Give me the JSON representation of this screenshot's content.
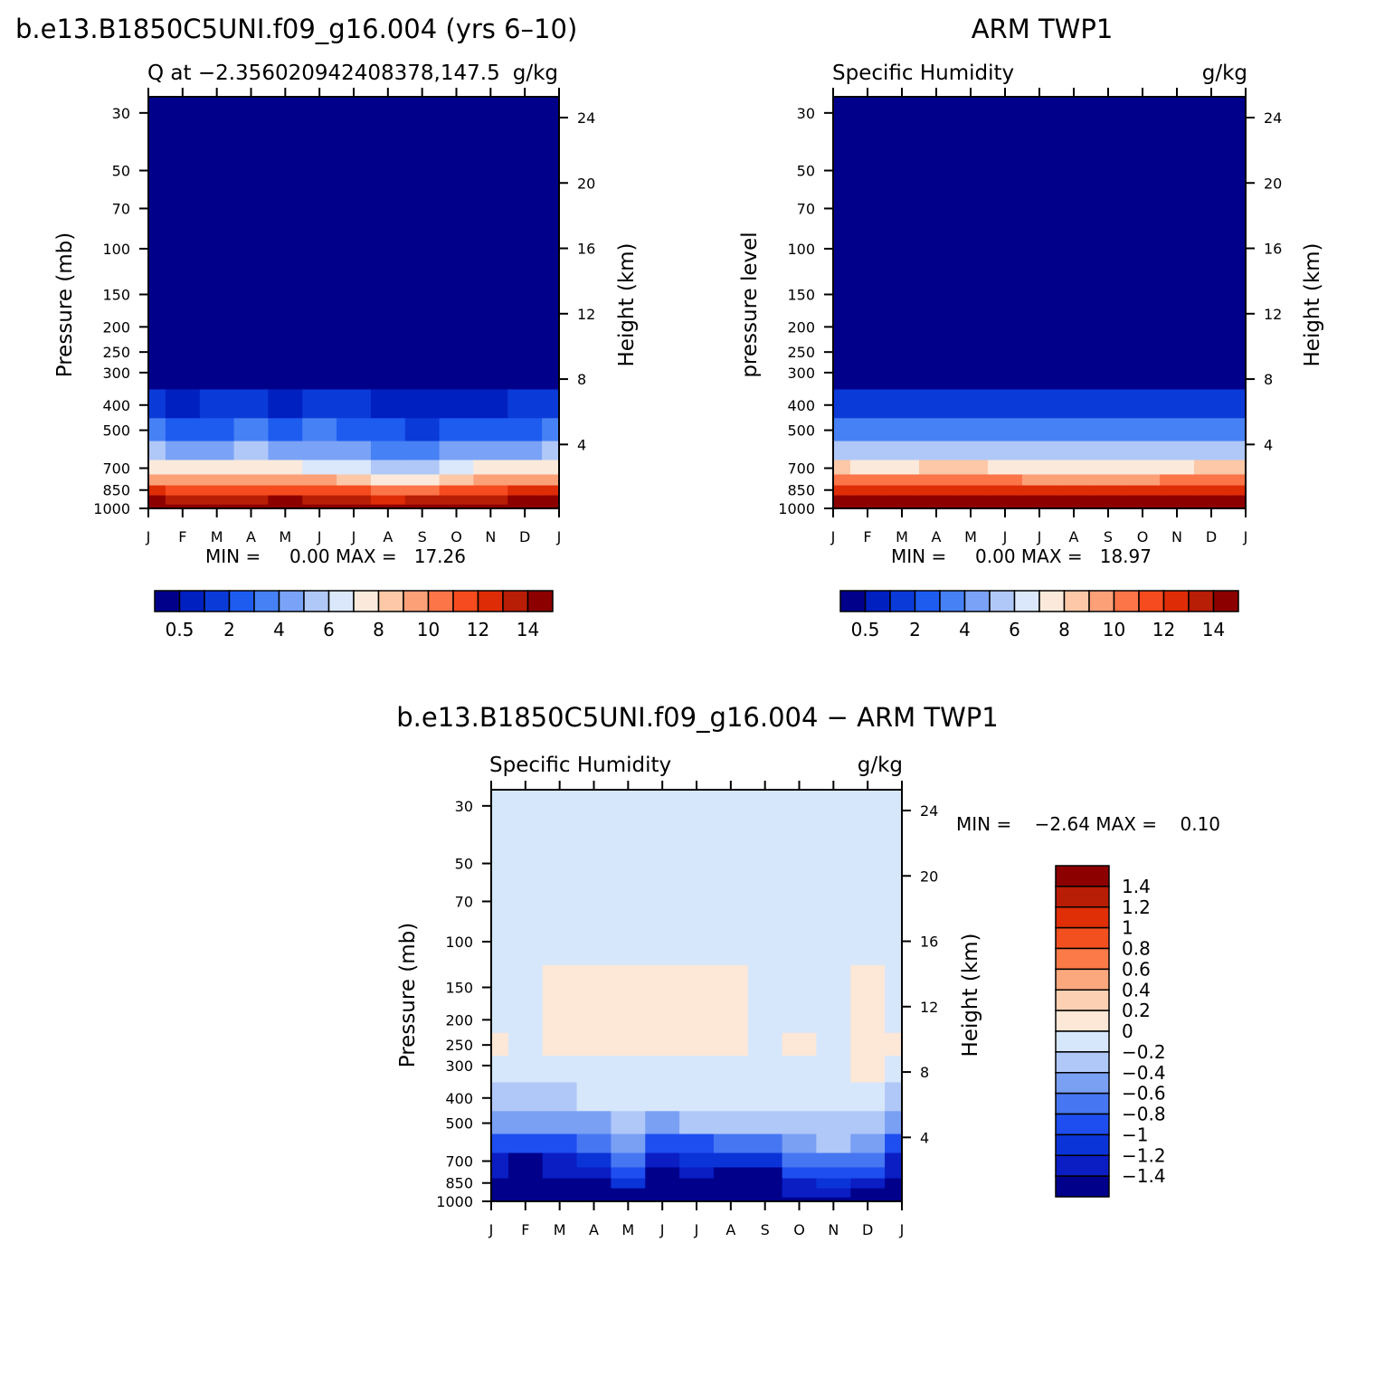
{
  "colors": {
    "model_scale": [
      "#00008b",
      "#0020c0",
      "#0a3ad8",
      "#1e5cf0",
      "#4681f5",
      "#7aa2f6",
      "#b0c8f8",
      "#dbe8fb",
      "#fbeadb",
      "#fcc8a8",
      "#fca078",
      "#fb7548",
      "#f54b1e",
      "#de2c06",
      "#b81d05",
      "#8c0000"
    ],
    "diff_scale": [
      "#00008b",
      "#0a1ec4",
      "#0b34d8",
      "#1e4ef0",
      "#4676f2",
      "#7aa0f4",
      "#b0c8f8",
      "#d6e7fb",
      "#fde7d6",
      "#fcd0b2",
      "#fca87e",
      "#fb7a48",
      "#f3501f",
      "#e02e06",
      "#b81d05",
      "#8c0000"
    ],
    "frame": "#000000"
  },
  "months": [
    "J",
    "F",
    "M",
    "A",
    "M",
    "J",
    "J",
    "A",
    "S",
    "O",
    "N",
    "D",
    "J"
  ],
  "panels": [
    {
      "id": "model",
      "title": "b.e13.B1850C5UNI.f09_g16.004 (yrs 6–10)",
      "left_label": "Q at −2.356020942408378,147.5",
      "right_label": "g/kg",
      "ylabel": "Pressure (mb)",
      "ylabel_right": "Height (km)",
      "minmax": "MIN =     0.00 MAX =   17.26",
      "pressure_ticks": [
        "30",
        "50",
        "70",
        "100",
        "150",
        "200",
        "250",
        "300",
        "400",
        "500",
        "700",
        "850",
        "1000"
      ],
      "height_ticks": [
        "24",
        "20",
        "16",
        "12",
        "8",
        "4"
      ],
      "colorbar_labels": [
        "0.5",
        "2",
        "4",
        "6",
        "8",
        "10",
        "12",
        "14"
      ]
    },
    {
      "id": "obs",
      "title": "ARM TWP1",
      "left_label": "Specific Humidity",
      "right_label": "g/kg",
      "ylabel": "pressure level",
      "ylabel_right": "Height (km)",
      "minmax": "MIN =     0.00 MAX =   18.97",
      "pressure_ticks": [
        "30",
        "50",
        "70",
        "100",
        "150",
        "200",
        "250",
        "300",
        "400",
        "500",
        "700",
        "850",
        "1000"
      ],
      "height_ticks": [
        "24",
        "20",
        "16",
        "12",
        "8",
        "4"
      ],
      "colorbar_labels": [
        "0.5",
        "2",
        "4",
        "6",
        "8",
        "10",
        "12",
        "14"
      ]
    },
    {
      "id": "diff",
      "title": "b.e13.B1850C5UNI.f09_g16.004 − ARM TWP1",
      "left_label": "Specific Humidity",
      "right_label": "g/kg",
      "ylabel": "Pressure (mb)",
      "ylabel_right": "Height (km)",
      "minmax": "MIN =    −2.64 MAX =    0.10",
      "pressure_ticks": [
        "30",
        "50",
        "70",
        "100",
        "150",
        "200",
        "250",
        "300",
        "400",
        "500",
        "700",
        "850",
        "1000"
      ],
      "height_ticks": [
        "24",
        "20",
        "16",
        "12",
        "8",
        "4"
      ],
      "colorbar_labels": [
        "1.4",
        "1.2",
        "1",
        "0.8",
        "0.6",
        "0.4",
        "0.2",
        "0",
        "−0.2",
        "−0.4",
        "−0.6",
        "−0.8",
        "−1",
        "−1.2",
        "−1.4"
      ]
    }
  ],
  "chart_data": [
    {
      "type": "heatmap",
      "title": "b.e13.B1850C5UNI.f09_g16.004 (yrs 6–10)",
      "variable": "Q",
      "units": "g/kg",
      "x": [
        "J",
        "F",
        "M",
        "A",
        "M",
        "J",
        "J",
        "A",
        "S",
        "O",
        "N",
        "D",
        "J"
      ],
      "ylabel": "Pressure (mb)",
      "ylim": [
        1000,
        30
      ],
      "contour_levels": [
        0.5,
        1,
        2,
        3,
        4,
        5,
        6,
        7,
        8,
        9,
        10,
        11,
        12,
        13,
        14
      ],
      "min": 0.0,
      "max": 17.26,
      "pressure_rows_mb": [
        1000,
        925,
        850,
        775,
        700,
        600,
        500,
        400,
        300
      ],
      "values": [
        [
          17.1,
          17.0,
          17.0,
          17.1,
          17.2,
          17.1,
          16.9,
          16.5,
          16.6,
          17.0,
          17.2,
          17.2,
          17.1
        ],
        [
          14.3,
          13.9,
          13.8,
          13.9,
          14.0,
          13.8,
          13.3,
          12.9,
          13.0,
          13.5,
          13.8,
          14.1,
          14.3
        ],
        [
          12.2,
          11.8,
          11.6,
          11.8,
          11.9,
          11.6,
          11.0,
          10.4,
          10.6,
          11.2,
          11.6,
          12.0,
          12.2
        ],
        [
          9.9,
          9.4,
          9.2,
          9.5,
          9.6,
          9.1,
          8.2,
          7.6,
          7.8,
          8.6,
          9.1,
          9.7,
          9.9
        ],
        [
          7.9,
          7.3,
          7.1,
          7.5,
          7.6,
          6.9,
          6.1,
          5.6,
          5.8,
          6.5,
          7.1,
          7.7,
          7.9
        ],
        [
          5.2,
          4.5,
          4.7,
          5.0,
          4.6,
          4.9,
          4.3,
          3.7,
          3.6,
          4.1,
          4.3,
          4.9,
          5.2
        ],
        [
          3.1,
          2.5,
          2.9,
          3.2,
          2.6,
          3.0,
          2.6,
          2.2,
          1.9,
          2.3,
          2.2,
          2.8,
          3.1
        ],
        [
          1.3,
          0.9,
          1.1,
          1.2,
          0.8,
          1.1,
          1.0,
          0.9,
          0.8,
          0.9,
          0.9,
          1.1,
          1.3
        ],
        [
          0.35,
          0.3,
          0.35,
          0.4,
          0.3,
          0.35,
          0.3,
          0.3,
          0.25,
          0.3,
          0.3,
          0.35,
          0.35
        ]
      ],
      "above_300mb": "< 0.5"
    },
    {
      "type": "heatmap",
      "title": "ARM TWP1",
      "variable": "Specific Humidity",
      "units": "g/kg",
      "x": [
        "J",
        "F",
        "M",
        "A",
        "M",
        "J",
        "J",
        "A",
        "S",
        "O",
        "N",
        "D",
        "J"
      ],
      "ylabel": "pressure level",
      "ylim": [
        1000,
        30
      ],
      "contour_levels": [
        0.5,
        1,
        2,
        3,
        4,
        5,
        6,
        7,
        8,
        9,
        10,
        11,
        12,
        13,
        14
      ],
      "min": 0.0,
      "max": 18.97,
      "pressure_rows_mb": [
        1000,
        925,
        850,
        775,
        700,
        600,
        500,
        400,
        300
      ],
      "values": [
        [
          18.9,
          18.8,
          18.8,
          18.9,
          18.9,
          18.8,
          18.7,
          18.6,
          18.6,
          18.7,
          18.8,
          18.9,
          18.9
        ],
        [
          15.2,
          15.0,
          14.9,
          15.2,
          15.3,
          15.1,
          14.9,
          14.8,
          14.8,
          14.8,
          15.0,
          15.2,
          15.2
        ],
        [
          12.9,
          12.6,
          12.5,
          12.8,
          12.9,
          12.7,
          12.5,
          12.3,
          12.3,
          12.3,
          12.6,
          12.9,
          12.9
        ],
        [
          10.4,
          10.1,
          10.0,
          10.3,
          10.3,
          10.1,
          9.9,
          9.7,
          9.7,
          9.8,
          10.1,
          10.4,
          10.4
        ],
        [
          8.2,
          7.9,
          7.8,
          8.1,
          8.1,
          7.9,
          7.7,
          7.5,
          7.5,
          7.6,
          7.9,
          8.2,
          8.2
        ],
        [
          5.7,
          5.4,
          5.4,
          5.6,
          5.6,
          5.5,
          5.3,
          5.2,
          5.2,
          5.2,
          5.4,
          5.7,
          5.7
        ],
        [
          3.6,
          3.4,
          3.4,
          3.5,
          3.5,
          3.4,
          3.3,
          3.2,
          3.2,
          3.2,
          3.4,
          3.6,
          3.6
        ],
        [
          1.6,
          1.5,
          1.5,
          1.6,
          1.6,
          1.5,
          1.5,
          1.4,
          1.4,
          1.4,
          1.5,
          1.6,
          1.6
        ],
        [
          0.4,
          0.4,
          0.4,
          0.4,
          0.4,
          0.4,
          0.4,
          0.4,
          0.4,
          0.4,
          0.4,
          0.4,
          0.4
        ]
      ],
      "above_300mb": "< 0.5"
    },
    {
      "type": "heatmap",
      "title": "b.e13.B1850C5UNI.f09_g16.004 − ARM TWP1",
      "variable": "Specific Humidity",
      "units": "g/kg",
      "x": [
        "J",
        "F",
        "M",
        "A",
        "M",
        "J",
        "J",
        "A",
        "S",
        "O",
        "N",
        "D",
        "J"
      ],
      "ylabel": "Pressure (mb)",
      "ylim": [
        1000,
        30
      ],
      "contour_levels": [
        -1.4,
        -1.2,
        -1,
        -0.8,
        -0.6,
        -0.4,
        -0.2,
        0,
        0.2,
        0.4,
        0.6,
        0.8,
        1,
        1.2,
        1.4
      ],
      "min": -2.64,
      "max": 0.1,
      "pressure_rows_mb": [
        1000,
        925,
        850,
        775,
        700,
        600,
        500,
        400,
        300,
        250,
        200,
        150,
        100,
        70,
        50,
        30
      ],
      "values": [
        [
          -1.8,
          -1.8,
          -1.8,
          -1.8,
          -1.7,
          -2.0,
          -1.9,
          -2.1,
          -2.0,
          -1.7,
          -1.6,
          -1.7,
          -1.8
        ],
        [
          -1.7,
          -1.7,
          -1.6,
          -1.6,
          -1.5,
          -1.9,
          -1.8,
          -2.0,
          -1.9,
          -1.4,
          -1.4,
          -1.5,
          -1.7
        ],
        [
          -1.6,
          -1.5,
          -1.6,
          -1.7,
          -1.2,
          -1.8,
          -1.8,
          -1.9,
          -1.8,
          -1.3,
          -1.2,
          -1.3,
          -1.6
        ],
        [
          -1.4,
          -1.6,
          -1.4,
          -1.3,
          -1.0,
          -1.5,
          -1.4,
          -1.5,
          -1.5,
          -1.0,
          -1.0,
          -1.0,
          -1.4
        ],
        [
          -1.3,
          -1.6,
          -1.3,
          -1.1,
          -0.8,
          -1.3,
          -1.2,
          -1.1,
          -1.1,
          -0.8,
          -0.8,
          -0.7,
          -1.3
        ],
        [
          -1.0,
          -1.0,
          -0.9,
          -0.8,
          -0.5,
          -0.9,
          -0.9,
          -0.8,
          -0.8,
          -0.6,
          -0.4,
          -0.5,
          -1.0
        ],
        [
          -0.6,
          -0.6,
          -0.6,
          -0.5,
          -0.3,
          -0.5,
          -0.4,
          -0.4,
          -0.4,
          -0.4,
          -0.3,
          -0.3,
          -0.6
        ],
        [
          -0.3,
          -0.3,
          -0.3,
          -0.15,
          -0.1,
          -0.1,
          -0.1,
          -0.1,
          -0.1,
          -0.1,
          -0.1,
          -0.05,
          -0.3
        ],
        [
          -0.1,
          -0.1,
          -0.05,
          -0.05,
          -0.05,
          -0.05,
          -0.05,
          -0.1,
          -0.1,
          -0.05,
          -0.05,
          0.05,
          -0.1
        ],
        [
          0.05,
          -0.05,
          0.05,
          0.05,
          0.05,
          0.05,
          0.05,
          0.02,
          -0.05,
          0.05,
          -0.05,
          0.05,
          0.05
        ],
        [
          -0.05,
          -0.05,
          0.05,
          0.05,
          0.05,
          0.05,
          0.05,
          0.05,
          -0.05,
          -0.05,
          -0.05,
          0.05,
          -0.05
        ],
        [
          -0.05,
          -0.05,
          0.05,
          0.05,
          0.05,
          0.05,
          0.05,
          0.05,
          -0.05,
          -0.05,
          -0.05,
          0.05,
          -0.05
        ],
        [
          -0.05,
          -0.05,
          -0.05,
          -0.05,
          -0.05,
          -0.05,
          -0.05,
          -0.05,
          -0.05,
          -0.05,
          -0.05,
          -0.05,
          -0.05
        ],
        [
          -0.05,
          -0.05,
          -0.05,
          -0.05,
          -0.05,
          -0.05,
          -0.05,
          -0.05,
          -0.05,
          -0.05,
          -0.05,
          -0.05,
          -0.05
        ],
        [
          -0.05,
          -0.05,
          -0.05,
          -0.05,
          -0.05,
          -0.05,
          -0.05,
          -0.05,
          -0.05,
          -0.05,
          -0.05,
          -0.05,
          -0.05
        ],
        [
          -0.05,
          -0.05,
          -0.05,
          -0.05,
          -0.05,
          -0.05,
          -0.05,
          -0.05,
          -0.05,
          -0.05,
          -0.05,
          -0.05,
          -0.05
        ]
      ]
    }
  ]
}
